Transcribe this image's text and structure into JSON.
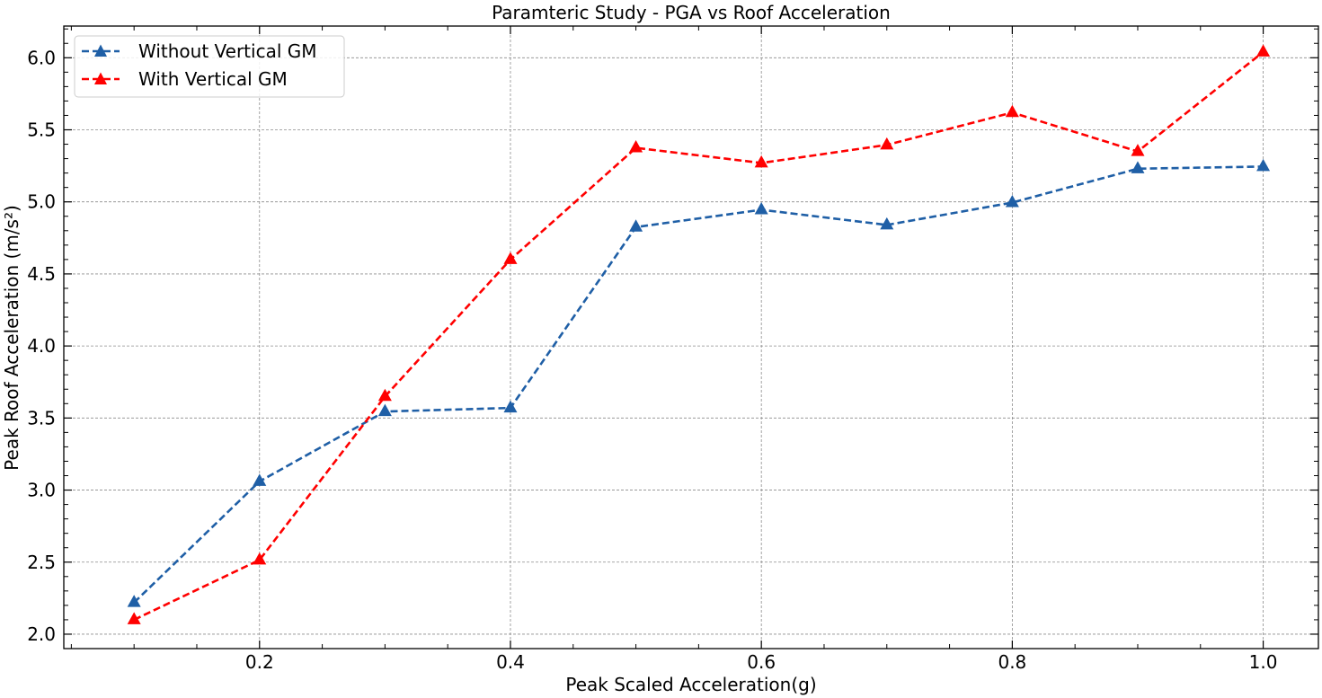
{
  "chart_data": {
    "type": "line",
    "title": "Paramteric Study - PGA vs Roof Acceleration",
    "xlabel": "Peak Scaled Acceleration(g)",
    "ylabel": "Peak Roof Acceleration (m/s²)",
    "xlim": [
      0.044,
      1.044
    ],
    "ylim": [
      1.9,
      6.22
    ],
    "xticks": [
      0.2,
      0.4,
      0.6,
      0.8,
      1.0
    ],
    "xtick_labels": [
      "0.2",
      "0.4",
      "0.6",
      "0.8",
      "1.0"
    ],
    "yticks": [
      2.0,
      2.5,
      3.0,
      3.5,
      4.0,
      4.5,
      5.0,
      5.5,
      6.0
    ],
    "ytick_labels": [
      "2.0",
      "2.5",
      "3.0",
      "3.5",
      "4.0",
      "4.5",
      "5.0",
      "5.5",
      "6.0"
    ],
    "grid": true,
    "legend_position": "top-left",
    "x": [
      0.1,
      0.2,
      0.3,
      0.4,
      0.5,
      0.6,
      0.7,
      0.8,
      0.9,
      1.0
    ],
    "series": [
      {
        "name": "Without Vertical GM",
        "color": "#1f5fa6",
        "marker": "triangle",
        "line_style": "dashed",
        "values": [
          2.22,
          3.06,
          3.545,
          3.57,
          4.825,
          4.945,
          4.84,
          4.995,
          5.23,
          5.245
        ]
      },
      {
        "name": "With Vertical GM",
        "color": "#ff0000",
        "marker": "triangle",
        "line_style": "dashed",
        "values": [
          2.1,
          2.515,
          3.65,
          4.6,
          5.375,
          5.27,
          5.395,
          5.62,
          5.35,
          6.04
        ]
      }
    ]
  }
}
